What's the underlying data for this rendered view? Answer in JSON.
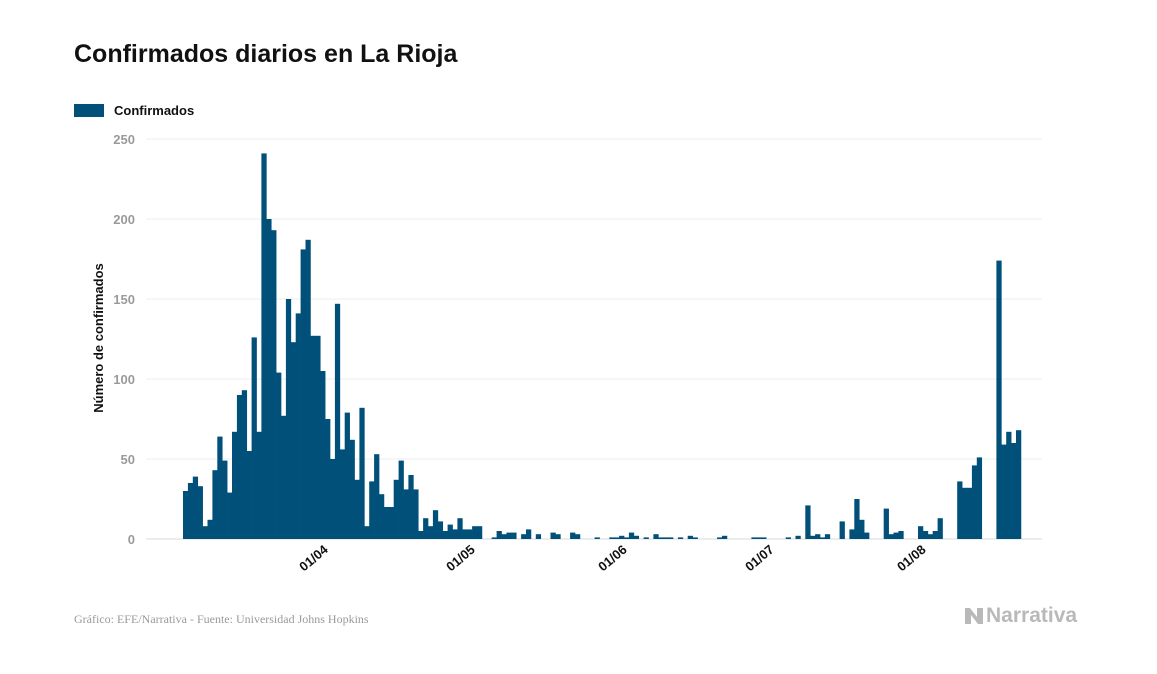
{
  "page": {
    "title": "Confirmados diarios en La Rioja"
  },
  "legend": {
    "label": "Confirmados",
    "color": "#00507a"
  },
  "source": "Gráfico: EFE/Narrativa - Fuente: Universidad Johns Hopkins",
  "brand": {
    "name": "Narrativa",
    "icon": "narrativa-logo-icon"
  },
  "chart_data": {
    "type": "bar",
    "title": "Confirmados diarios en La Rioja",
    "ylabel": "Número de confirmados",
    "xlabel": "",
    "ylim": [
      0,
      250
    ],
    "yticks": [
      0,
      50,
      100,
      150,
      200,
      250
    ],
    "x_start_date": "2020-03-06",
    "xtick_labels": [
      {
        "date": "2020-04-01",
        "label": "01/04"
      },
      {
        "date": "2020-05-01",
        "label": "01/05"
      },
      {
        "date": "2020-06-01",
        "label": "01/06"
      },
      {
        "date": "2020-07-01",
        "label": "01/07"
      },
      {
        "date": "2020-08-01",
        "label": "01/08"
      }
    ],
    "grid": true,
    "legend_position": "top-left",
    "bar_color": "#00507a",
    "series": [
      {
        "name": "Confirmados",
        "values": [
          30,
          35,
          39,
          33,
          8,
          12,
          43,
          64,
          49,
          29,
          67,
          90,
          93,
          55,
          126,
          67,
          241,
          200,
          193,
          104,
          77,
          150,
          123,
          141,
          181,
          187,
          127,
          127,
          105,
          75,
          50,
          147,
          56,
          79,
          62,
          37,
          82,
          8,
          36,
          53,
          28,
          20,
          20,
          37,
          49,
          31,
          40,
          31,
          5,
          13,
          8,
          18,
          11,
          5,
          9,
          6,
          13,
          6,
          6,
          8,
          8,
          null,
          0,
          1,
          5,
          3,
          4,
          4,
          0,
          3,
          6,
          0,
          3,
          0,
          0,
          4,
          3,
          0,
          0,
          4,
          3,
          0,
          0,
          0,
          1,
          0,
          0,
          1,
          1,
          2,
          1,
          4,
          2,
          0,
          1,
          0,
          3,
          1,
          1,
          1,
          0,
          1,
          0,
          2,
          1,
          0,
          0,
          0,
          0,
          1,
          2,
          0,
          0,
          0,
          0,
          0,
          1,
          1,
          1,
          0,
          0,
          0,
          0,
          1,
          0,
          2,
          0,
          21,
          2,
          3,
          1,
          3,
          0,
          0,
          11,
          0,
          6,
          25,
          12,
          4,
          0,
          0,
          0,
          19,
          3,
          4,
          5,
          0,
          0,
          0,
          8,
          5,
          3,
          5,
          13,
          0,
          0,
          0,
          36,
          32,
          32,
          46,
          51,
          0,
          0,
          0,
          174,
          59,
          67,
          60,
          68
        ]
      }
    ]
  }
}
